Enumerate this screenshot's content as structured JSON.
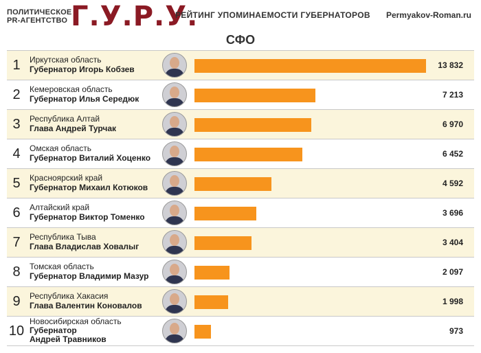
{
  "header": {
    "agency_line1": "ПОЛИТИЧЕСКОЕ",
    "agency_line2": "PR-АГЕНТСТВО",
    "logo": "Г.У.Р.У.",
    "rating_title": "РЕЙТИНГ УПОМИНАЕМОСТИ ГУБЕРНАТОРОВ",
    "site": "Permyakov-Roman.ru"
  },
  "chart_data": {
    "type": "bar",
    "title": "СФО",
    "orientation": "horizontal",
    "bar_color": "#f7941d",
    "categories": [
      "Иркутская область",
      "Кемеровская область",
      "Республика Алтай",
      "Омская область",
      "Красноярский край",
      "Алтайский край",
      "Республика Тыва",
      "Томская область",
      "Республика Хакасия",
      "Новосибирская область"
    ],
    "values": [
      13832,
      7213,
      6970,
      6452,
      4592,
      3696,
      3404,
      2097,
      1998,
      973
    ],
    "value_labels": [
      "13 832",
      "7 213",
      "6 970",
      "6 452",
      "4 592",
      "3 696",
      "3 404",
      "2 097",
      "1 998",
      "973"
    ],
    "ranks": [
      "1",
      "2",
      "3",
      "4",
      "5",
      "6",
      "7",
      "8",
      "9",
      "10"
    ],
    "governors": [
      [
        "Губернатор Игорь Кобзев"
      ],
      [
        "Губернатор Илья Середюк"
      ],
      [
        "Глава Андрей Турчак"
      ],
      [
        "Губернатор Виталий Хоценко"
      ],
      [
        "Губернатор Михаил Котюков"
      ],
      [
        "Губернатор Виктор Томенко"
      ],
      [
        "Глава Владислав Ховалыг"
      ],
      [
        "Губернатор Владимир Мазур"
      ],
      [
        "Глава Валентин Коновалов"
      ],
      [
        "Губернатор",
        "Андрей Травников"
      ]
    ],
    "xlim": [
      0,
      13832
    ]
  }
}
